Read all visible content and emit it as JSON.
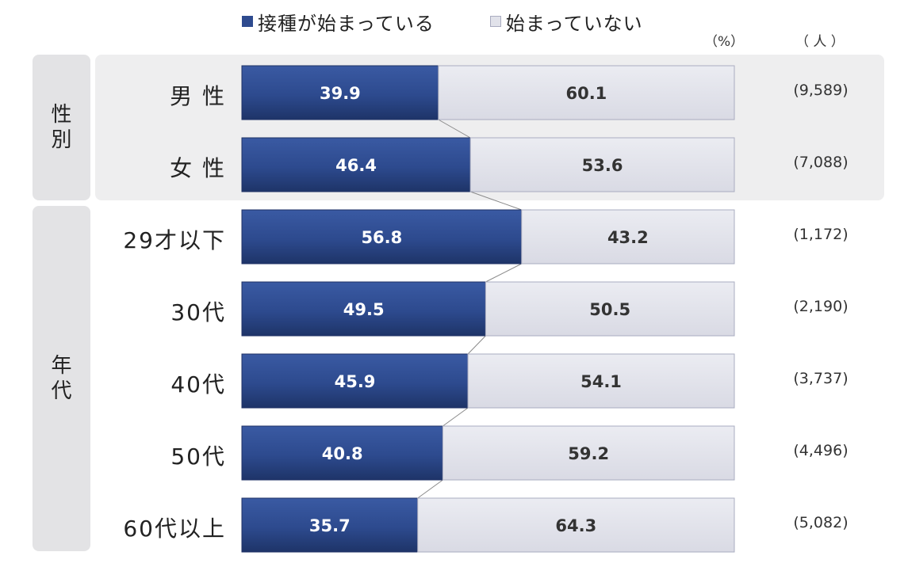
{
  "legend": {
    "started": {
      "label": "接種が始まっている",
      "color": "#2e4b8f"
    },
    "not_started": {
      "label": "始まっていない",
      "color": "#e1e2ea"
    }
  },
  "units": {
    "percent": "（%）",
    "people": "（ 人 ）"
  },
  "groups": [
    {
      "label_chars": [
        "性",
        "別"
      ]
    },
    {
      "label_chars": [
        "年",
        "代"
      ]
    }
  ],
  "chart_data": {
    "type": "bar",
    "orientation": "horizontal",
    "stacked": true,
    "percent_stacked": true,
    "categories": [
      "男 性",
      "女 性",
      "29才以下",
      "30代",
      "40代",
      "50代",
      "60代以上"
    ],
    "series": [
      {
        "name": "接種が始まっている",
        "values": [
          39.9,
          46.4,
          56.8,
          49.5,
          45.9,
          40.8,
          35.7
        ]
      },
      {
        "name": "始まっていない",
        "values": [
          60.1,
          53.6,
          43.2,
          50.5,
          54.1,
          59.2,
          64.3
        ]
      }
    ],
    "sample_sizes": [
      "(9,589)",
      "(7,088)",
      "(1,172)",
      "(2,190)",
      "(3,737)",
      "(4,496)",
      "(5,082)"
    ],
    "xlim": [
      0,
      100
    ],
    "legend_position": "top",
    "series_connector_lines": true
  }
}
